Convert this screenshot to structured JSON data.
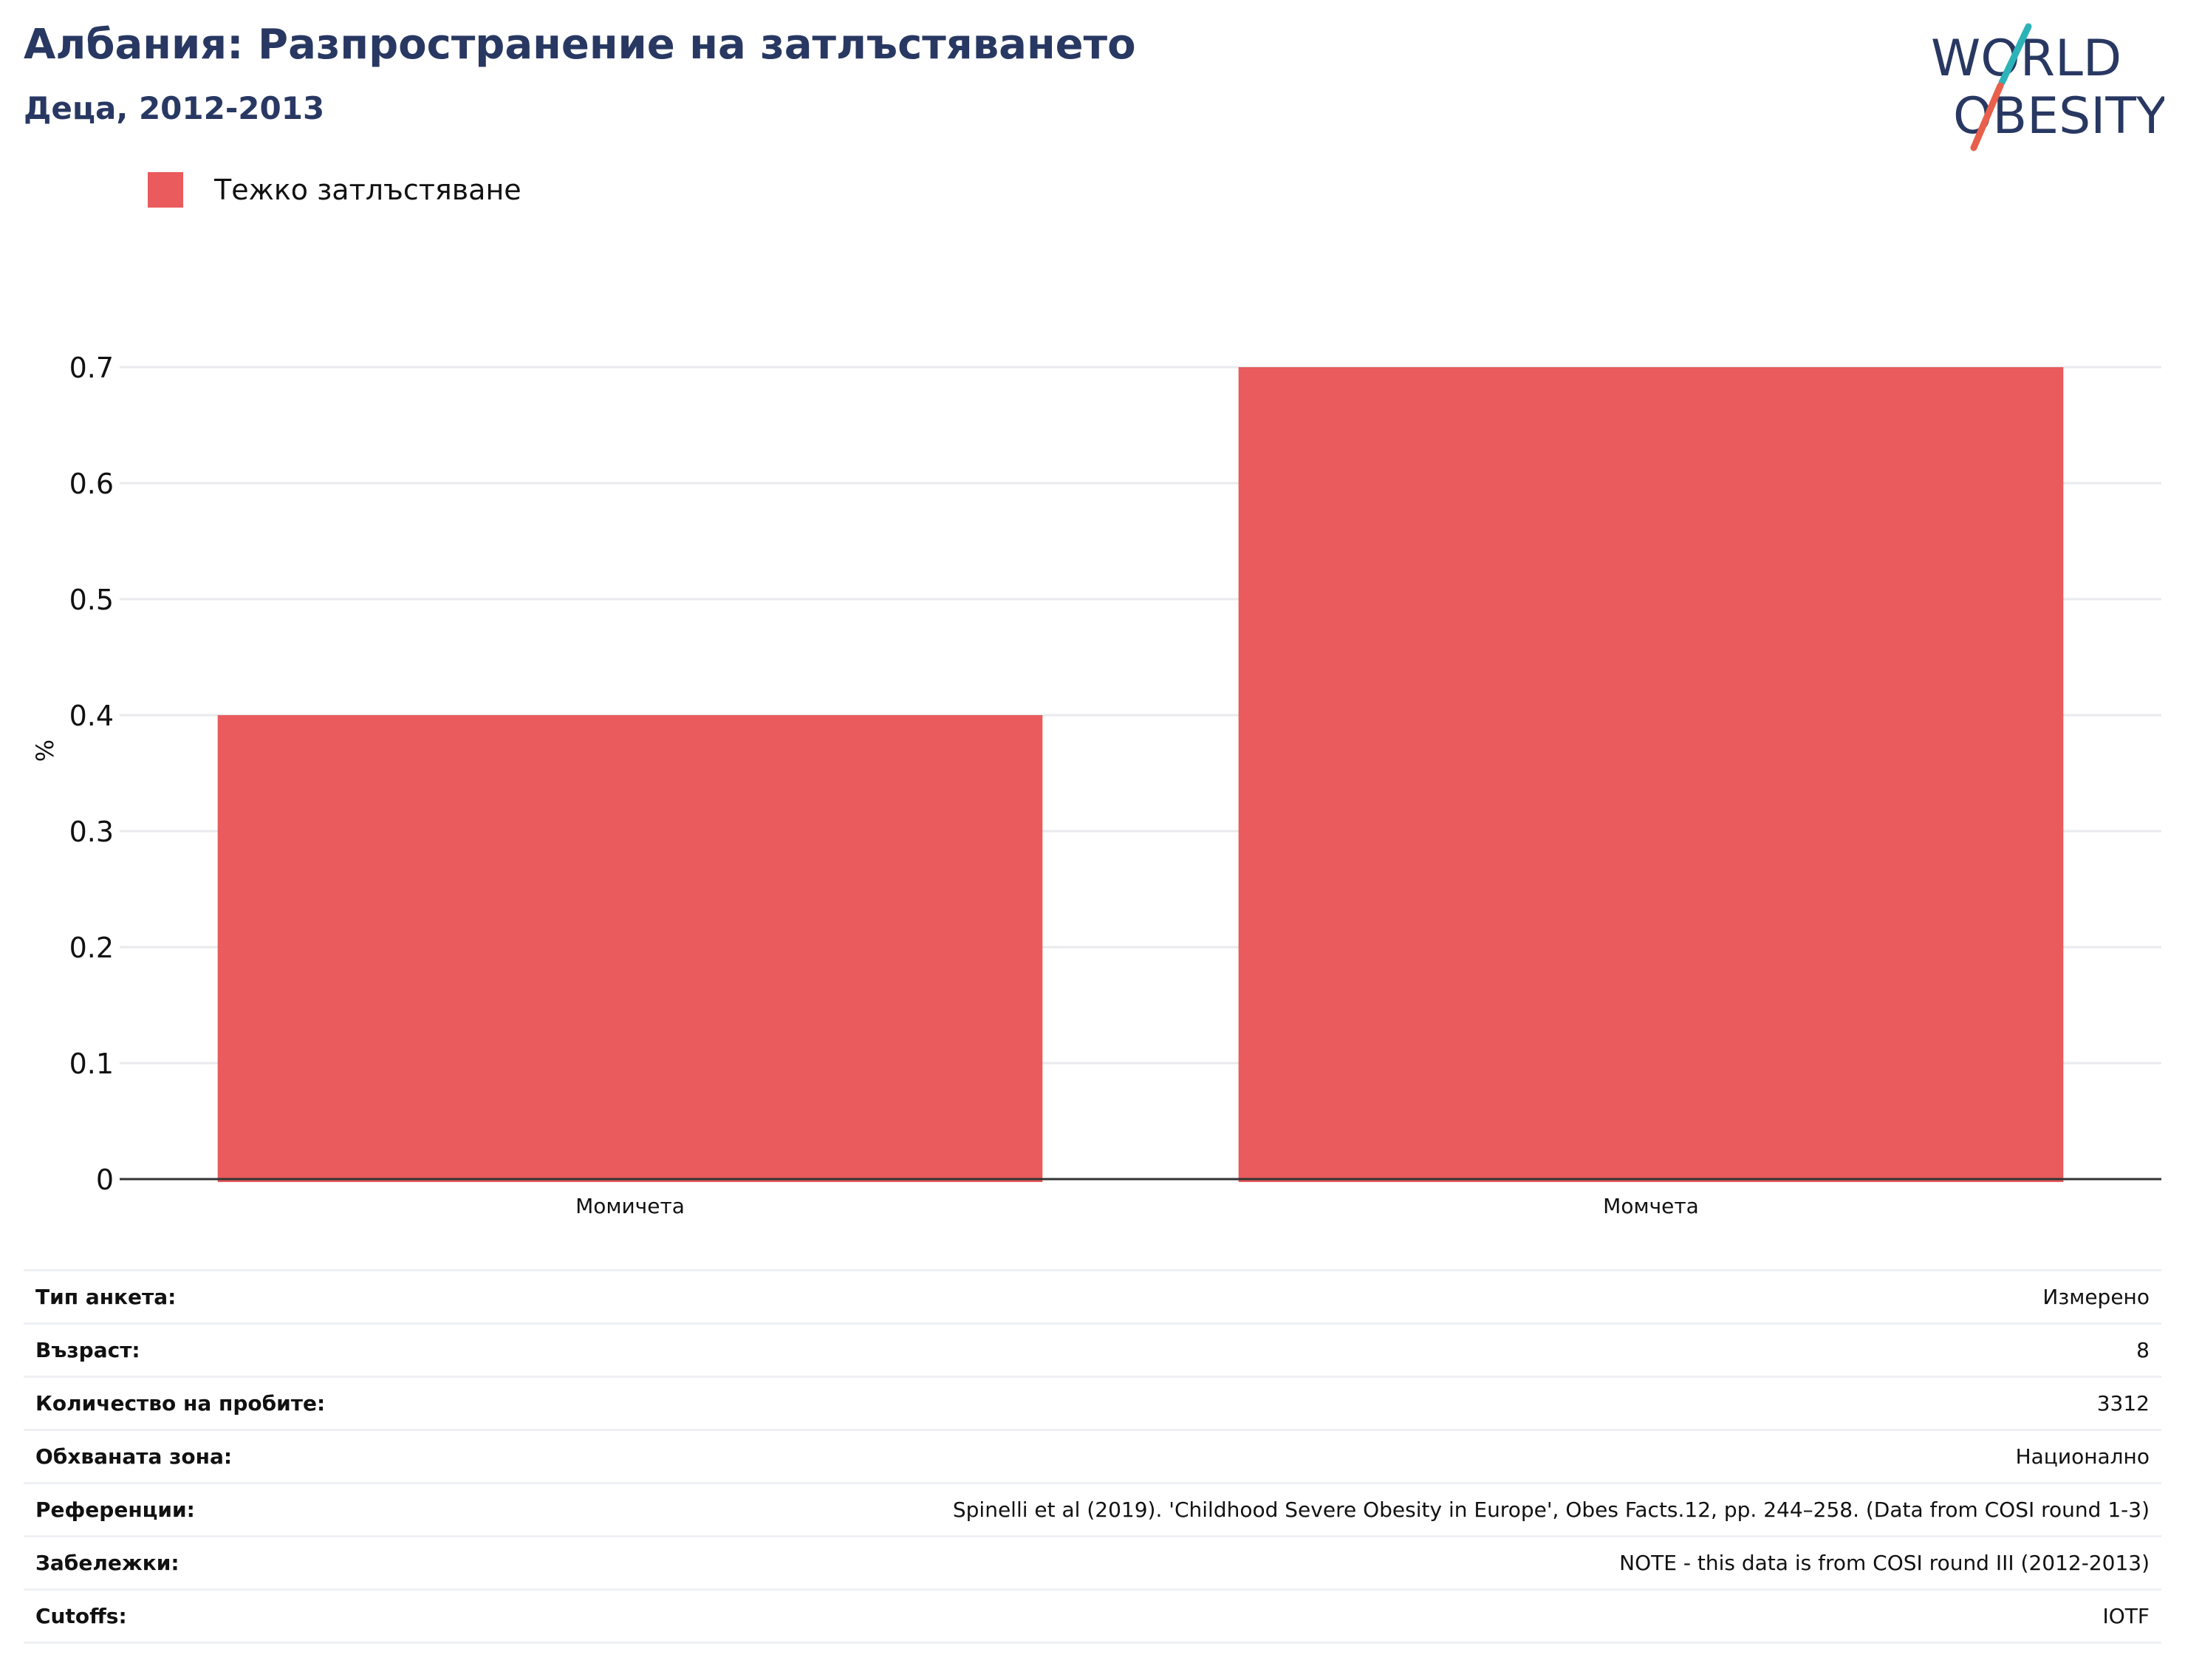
{
  "header": {
    "title": "Албания: Разпространение на затлъстяването",
    "subtitle": "Деца, 2012-2013"
  },
  "logo": {
    "line1": "WORLD",
    "line2": "OBESITY",
    "colors": {
      "text": "#283862",
      "slash_teal": "#2bb3b8",
      "slash_red": "#e8604c"
    }
  },
  "legend": {
    "items": [
      {
        "label": "Тежко затлъстяване",
        "color": "#e95b5c"
      }
    ]
  },
  "chart_data": {
    "type": "bar",
    "categories": [
      "Момичета",
      "Момчета"
    ],
    "series": [
      {
        "name": "Тежко затлъстяване",
        "values": [
          0.4,
          0.7
        ],
        "color": "#e95b5c"
      }
    ],
    "ylabel": "%",
    "xlabel": "",
    "ylim": [
      0,
      0.7
    ],
    "yticks": [
      "0",
      "0.1",
      "0.2",
      "0.3",
      "0.4",
      "0.5",
      "0.6",
      "0.7"
    ],
    "grid": true,
    "legend_position": "top-left"
  },
  "info": {
    "rows": [
      {
        "label": "Тип анкета:",
        "value": "Измерено"
      },
      {
        "label": "Възраст:",
        "value": "8"
      },
      {
        "label": "Количество на пробите:",
        "value": "3312"
      },
      {
        "label": "Обхваната зона:",
        "value": "Национално"
      },
      {
        "label": "Референции:",
        "value": "Spinelli et al (2019). 'Childhood Severe Obesity in Europe', Obes Facts.12, pp. 244–258. (Data from COSI round 1-3)"
      },
      {
        "label": "Забележки:",
        "value": "NOTE - this data is from COSI round III (2012-2013)"
      },
      {
        "label": "Cutoffs:",
        "value": "IOTF"
      }
    ]
  }
}
